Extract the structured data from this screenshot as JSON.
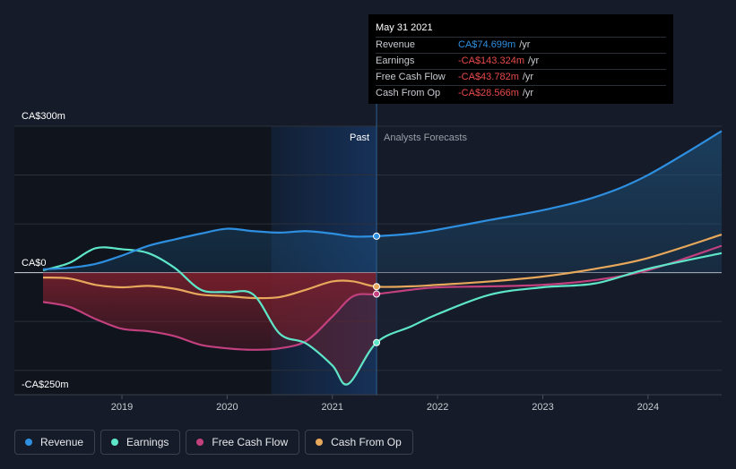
{
  "tooltip": {
    "date": "May 31 2021",
    "rows": [
      {
        "label": "Revenue",
        "value": "CA$74.699m",
        "unit": "/yr",
        "color": "#2e8fe0"
      },
      {
        "label": "Earnings",
        "value": "-CA$143.324m",
        "unit": "/yr",
        "color": "#e84a4a"
      },
      {
        "label": "Free Cash Flow",
        "value": "-CA$43.782m",
        "unit": "/yr",
        "color": "#e84a4a"
      },
      {
        "label": "Cash From Op",
        "value": "-CA$28.566m",
        "unit": "/yr",
        "color": "#e84a4a"
      }
    ]
  },
  "legend": [
    {
      "label": "Revenue",
      "color": "#2e8fe0"
    },
    {
      "label": "Earnings",
      "color": "#5ee6c8"
    },
    {
      "label": "Free Cash Flow",
      "color": "#c2407e"
    },
    {
      "label": "Cash From Op",
      "color": "#e8a85c"
    }
  ],
  "colors": {
    "background": "#151b28",
    "revenue": "#2e8fe0",
    "earnings": "#5ee6c8",
    "free_cash_flow": "#c2407e",
    "cash_from_op": "#e8a85c",
    "negative_fill": "#7a1f2b",
    "past_highlight": "#17345e"
  },
  "chart_data": {
    "type": "line",
    "past_label": "Past",
    "forecast_label": "Analysts Forecasts",
    "divider_x": 2021.42,
    "highlight_range": [
      2020.42,
      2021.42
    ],
    "x_ticks": [
      2019,
      2020,
      2021,
      2022,
      2023,
      2024
    ],
    "xlim": [
      2018.25,
      2024.7
    ],
    "ylim": [
      -250,
      300
    ],
    "y_ticks": [
      {
        "value": 300,
        "label": "CA$300m"
      },
      {
        "value": 0,
        "label": "CA$0"
      },
      {
        "value": -250,
        "label": "-CA$250m"
      }
    ],
    "series": [
      {
        "name": "Revenue",
        "key": "revenue",
        "past": [
          [
            2018.25,
            7
          ],
          [
            2018.5,
            10
          ],
          [
            2018.75,
            18
          ],
          [
            2019,
            35
          ],
          [
            2019.25,
            55
          ],
          [
            2019.5,
            68
          ],
          [
            2019.75,
            80
          ],
          [
            2020,
            90
          ],
          [
            2020.25,
            85
          ],
          [
            2020.5,
            82
          ],
          [
            2020.75,
            85
          ],
          [
            2021,
            80
          ],
          [
            2021.2,
            74
          ],
          [
            2021.42,
            74.7
          ]
        ],
        "forecast": [
          [
            2021.42,
            74.7
          ],
          [
            2021.75,
            80
          ],
          [
            2022,
            88
          ],
          [
            2022.5,
            108
          ],
          [
            2023,
            128
          ],
          [
            2023.5,
            155
          ],
          [
            2024,
            200
          ],
          [
            2024.7,
            290
          ]
        ]
      },
      {
        "name": "Earnings",
        "key": "earnings",
        "past": [
          [
            2018.25,
            5
          ],
          [
            2018.5,
            20
          ],
          [
            2018.75,
            50
          ],
          [
            2019,
            48
          ],
          [
            2019.25,
            40
          ],
          [
            2019.5,
            10
          ],
          [
            2019.75,
            -35
          ],
          [
            2020,
            -40
          ],
          [
            2020.25,
            -45
          ],
          [
            2020.5,
            -125
          ],
          [
            2020.75,
            -145
          ],
          [
            2021,
            -190
          ],
          [
            2021.15,
            -228
          ],
          [
            2021.42,
            -143.3
          ]
        ],
        "forecast": [
          [
            2021.42,
            -143.3
          ],
          [
            2021.75,
            -110
          ],
          [
            2022,
            -85
          ],
          [
            2022.5,
            -45
          ],
          [
            2023,
            -30
          ],
          [
            2023.5,
            -22
          ],
          [
            2024,
            8
          ],
          [
            2024.7,
            40
          ]
        ]
      },
      {
        "name": "Free Cash Flow",
        "key": "free_cash_flow",
        "past": [
          [
            2018.25,
            -60
          ],
          [
            2018.5,
            -70
          ],
          [
            2018.75,
            -95
          ],
          [
            2019,
            -115
          ],
          [
            2019.25,
            -120
          ],
          [
            2019.5,
            -130
          ],
          [
            2019.75,
            -148
          ],
          [
            2020,
            -155
          ],
          [
            2020.25,
            -158
          ],
          [
            2020.5,
            -155
          ],
          [
            2020.75,
            -140
          ],
          [
            2021,
            -90
          ],
          [
            2021.2,
            -48
          ],
          [
            2021.42,
            -43.8
          ]
        ],
        "forecast": [
          [
            2021.42,
            -43.8
          ],
          [
            2021.75,
            -35
          ],
          [
            2022,
            -30
          ],
          [
            2022.5,
            -28
          ],
          [
            2023,
            -25
          ],
          [
            2023.5,
            -15
          ],
          [
            2024,
            5
          ],
          [
            2024.7,
            55
          ]
        ]
      },
      {
        "name": "Cash From Op",
        "key": "cash_from_op",
        "past": [
          [
            2018.25,
            -10
          ],
          [
            2018.5,
            -12
          ],
          [
            2018.75,
            -25
          ],
          [
            2019,
            -30
          ],
          [
            2019.25,
            -27
          ],
          [
            2019.5,
            -33
          ],
          [
            2019.75,
            -45
          ],
          [
            2020,
            -48
          ],
          [
            2020.25,
            -52
          ],
          [
            2020.5,
            -50
          ],
          [
            2020.75,
            -35
          ],
          [
            2021,
            -18
          ],
          [
            2021.2,
            -18
          ],
          [
            2021.42,
            -28.6
          ]
        ],
        "forecast": [
          [
            2021.42,
            -28.6
          ],
          [
            2021.75,
            -28
          ],
          [
            2022,
            -25
          ],
          [
            2022.5,
            -18
          ],
          [
            2023,
            -8
          ],
          [
            2023.5,
            8
          ],
          [
            2024,
            30
          ],
          [
            2024.7,
            78
          ]
        ]
      }
    ]
  }
}
